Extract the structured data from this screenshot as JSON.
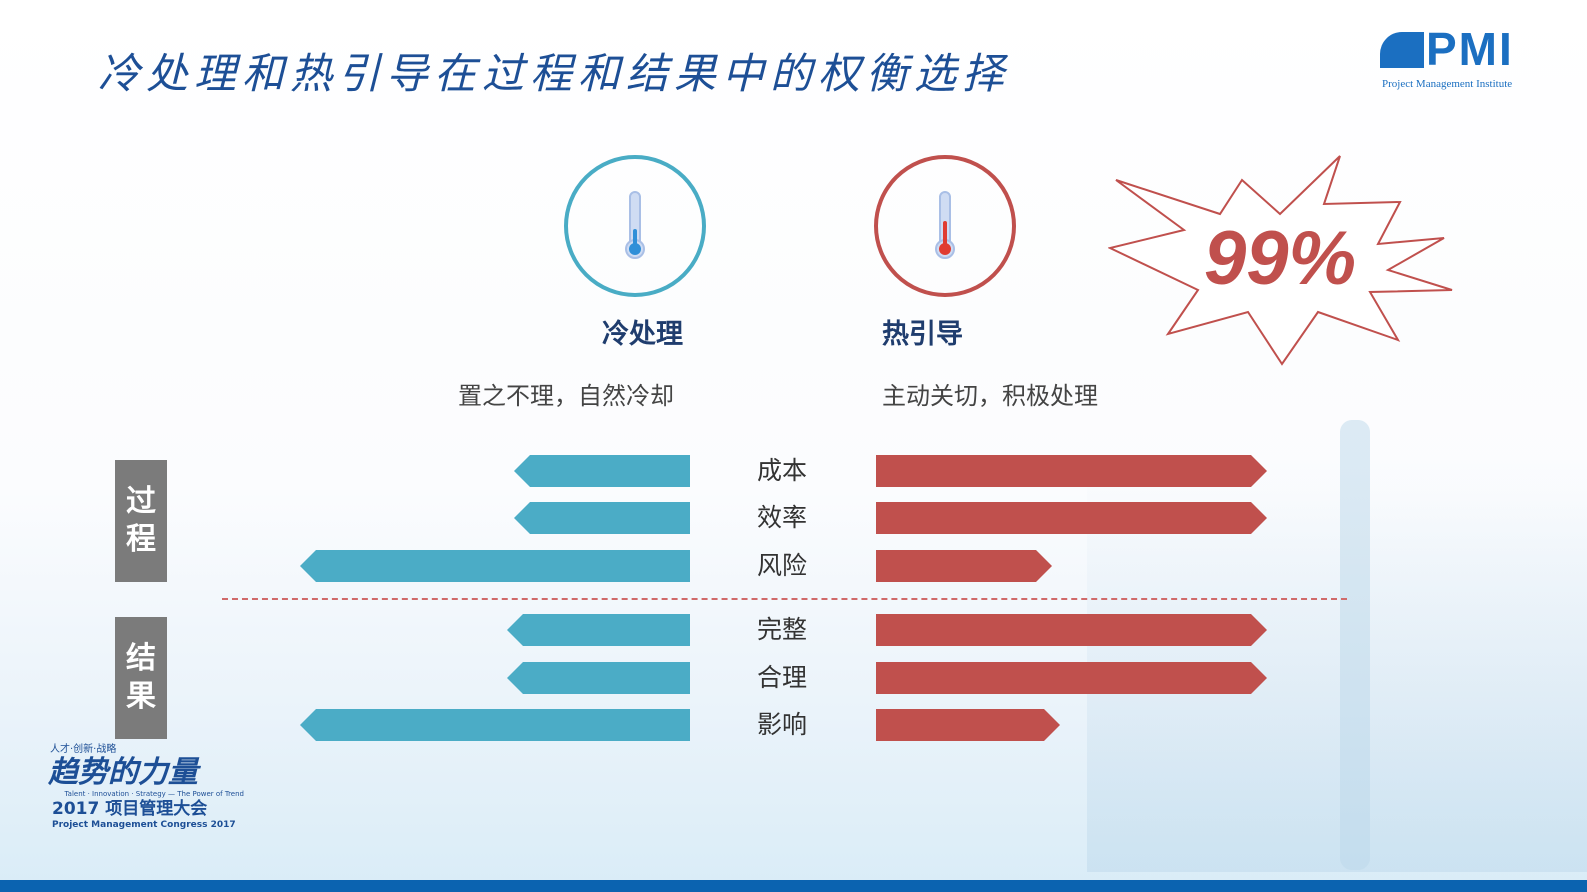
{
  "title": "冷处理和热引导在过程和结果中的权衡选择",
  "logo_pmi": {
    "mark": "PMI",
    "subtitle": "Project Management Institute"
  },
  "event_logo": {
    "tagline": "人才·创新·战略",
    "name": "趋势的力量",
    "english_tag": "Talent · Innovation · Strategy — The Power of Trend",
    "year_title": "2017 项目管理大会",
    "english": "Project Management Congress 2017"
  },
  "cold": {
    "label": "冷处理",
    "description": "置之不理，自然冷却",
    "color": "#4bacc6",
    "icon": "thermometer-low-icon"
  },
  "hot": {
    "label": "热引导",
    "description": "主动关切，积极处理",
    "color": "#c0504d",
    "icon": "thermometer-high-icon"
  },
  "badge": "99%",
  "groups": [
    {
      "label": "过程",
      "rows": [
        {
          "category": "成本",
          "cold_level": 0.45,
          "hot_level": 1.0
        },
        {
          "category": "效率",
          "cold_level": 0.45,
          "hot_level": 1.0
        },
        {
          "category": "风险",
          "cold_level": 1.0,
          "hot_level": 0.45
        }
      ]
    },
    {
      "label": "结果",
      "rows": [
        {
          "category": "完整",
          "cold_level": 0.47,
          "hot_level": 1.0
        },
        {
          "category": "合理",
          "cold_level": 0.47,
          "hot_level": 1.0
        },
        {
          "category": "影响",
          "cold_level": 1.0,
          "hot_level": 0.47
        }
      ]
    }
  ]
}
